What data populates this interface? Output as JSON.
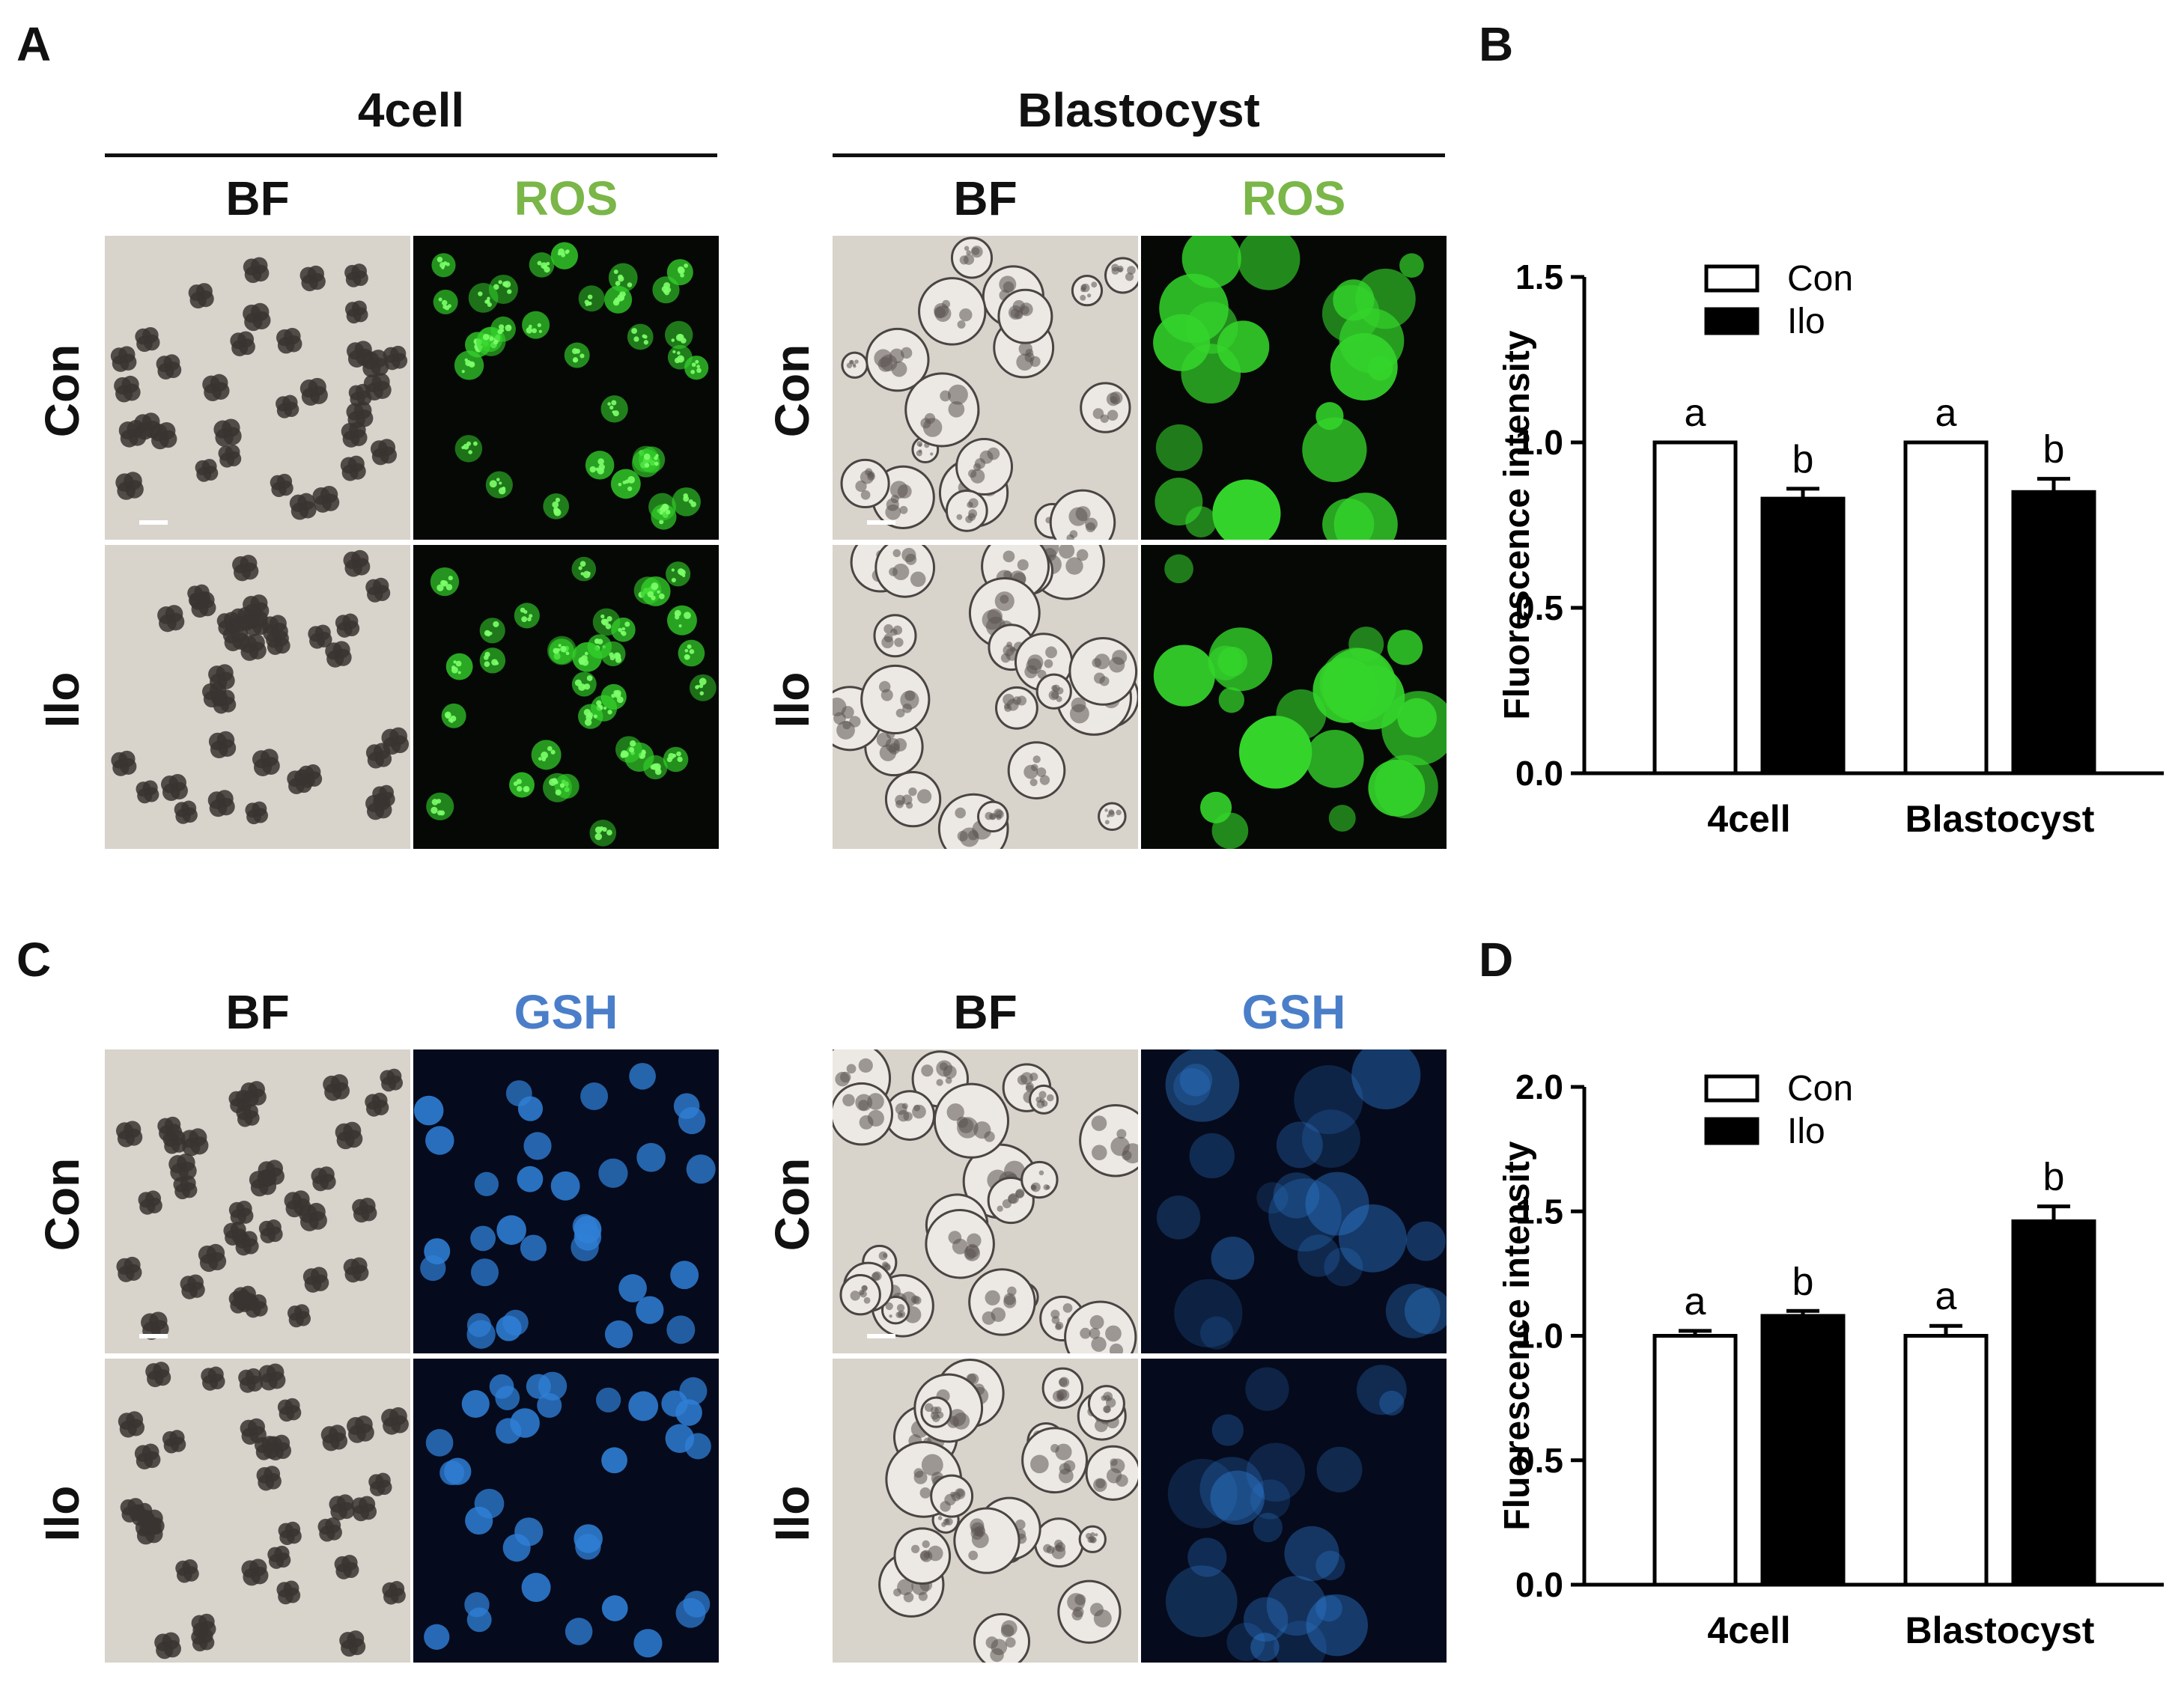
{
  "figure": {
    "panels": {
      "A": "A",
      "B": "B",
      "C": "C",
      "D": "D"
    },
    "groups": {
      "four_cell": "4cell",
      "blastocyst": "Blastocyst"
    },
    "columns": {
      "bf": "BF",
      "ros": "ROS",
      "gsh": "GSH"
    },
    "rows": {
      "con": "Con",
      "ilo": "Ilo"
    },
    "colors": {
      "bf_bg": "#d8d3cb",
      "embryo_dark": "#3a3431",
      "fluor_bg": "#050805",
      "ros_green": "#34d42b",
      "gsh_bg": "#050a1c",
      "gsh_blue": "#2f7fd6",
      "ros_label": "#7ab648",
      "gsh_label": "#4a7ec9"
    }
  },
  "chart_data": [
    {
      "type": "bar",
      "panel": "B",
      "categories": [
        "4cell",
        "Blastocyst"
      ],
      "series": [
        {
          "name": "Con",
          "values": [
            1.0,
            1.0
          ],
          "errors": [
            0.0,
            0.0
          ],
          "fill": "#ffffff",
          "letters": [
            "a",
            "a"
          ]
        },
        {
          "name": "Ilo",
          "values": [
            0.83,
            0.85
          ],
          "errors": [
            0.03,
            0.04
          ],
          "fill": "#000000",
          "letters": [
            "b",
            "b"
          ]
        }
      ],
      "ylabel": "Fluorescence intensity",
      "ylim": [
        0,
        1.5
      ],
      "yticks": [
        0.0,
        0.5,
        1.0,
        1.5
      ],
      "ytick_labels": [
        "0.0",
        "0.5",
        "1.0",
        "1.5"
      ],
      "legend": "top-left",
      "grid": false
    },
    {
      "type": "bar",
      "panel": "D",
      "categories": [
        "4cell",
        "Blastocyst"
      ],
      "series": [
        {
          "name": "Con",
          "values": [
            1.0,
            1.0
          ],
          "errors": [
            0.02,
            0.04
          ],
          "fill": "#ffffff",
          "letters": [
            "a",
            "a"
          ]
        },
        {
          "name": "Ilo",
          "values": [
            1.08,
            1.46
          ],
          "errors": [
            0.02,
            0.06
          ],
          "fill": "#000000",
          "letters": [
            "b",
            "b"
          ]
        }
      ],
      "ylabel": "Fluorescence intensity",
      "ylim": [
        0,
        2.0
      ],
      "yticks": [
        0.0,
        0.5,
        1.0,
        1.5,
        2.0
      ],
      "ytick_labels": [
        "0.0",
        "0.5",
        "1.0",
        "1.5",
        "2.0"
      ],
      "legend": "top-left",
      "grid": false
    }
  ]
}
